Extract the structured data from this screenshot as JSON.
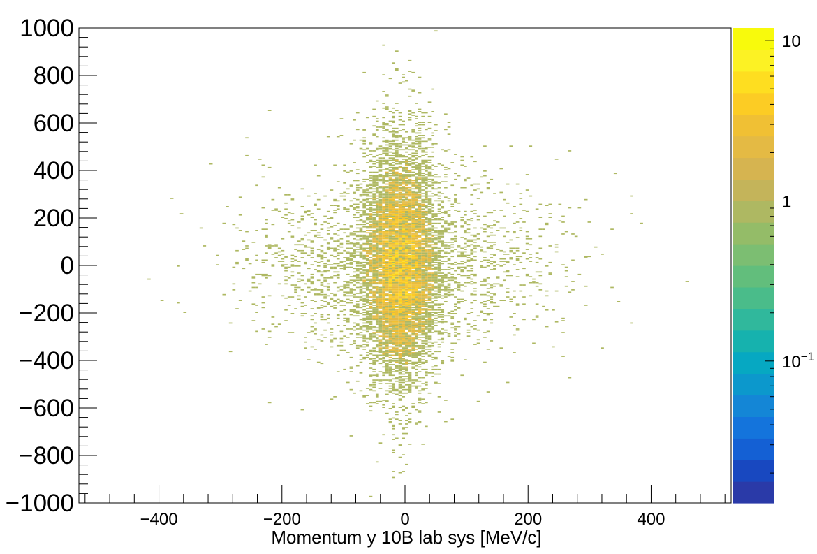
{
  "chart_data": {
    "type": "heatmap",
    "xlabel": "Momentum y 10B  lab sys [MeV/c]",
    "ylabel": "",
    "xlim": [
      -530,
      530
    ],
    "ylim": [
      -1000,
      1000
    ],
    "x_ticks": [
      "-400",
      "-200",
      "0",
      "200",
      "400"
    ],
    "y_ticks": [
      "-1000",
      "-800",
      "-600",
      "-400",
      "-200",
      "0",
      "200",
      "400",
      "600",
      "800",
      "1000"
    ],
    "x_tick_labels": [
      "−400",
      "−200",
      "0",
      "200",
      "400"
    ],
    "y_tick_labels": [
      "−1000",
      "−800",
      "−600",
      "−400",
      "−200",
      "0",
      "200",
      "400",
      "600",
      "800",
      "1000"
    ],
    "colorbar": {
      "scale": "log",
      "range": [
        0.013,
        12
      ],
      "tick_labels": [
        "10",
        "1",
        "10−1"
      ],
      "colors": [
        "#2a3aa8",
        "#1848c0",
        "#1460d4",
        "#1474dc",
        "#1486d6",
        "#0c98cc",
        "#06a8c2",
        "#16b2ae",
        "#30b89c",
        "#4abc8a",
        "#62be7c",
        "#7cbe72",
        "#94bc68",
        "#aeb862",
        "#c4b45a",
        "#d6b450",
        "#e4ba44",
        "#f0c034",
        "#fccc24",
        "#fede20",
        "#fcf224",
        "#f8fa0c"
      ]
    },
    "grid": false,
    "distribution": {
      "description_values": {
        "core_center": [
          -10,
          0
        ],
        "core_sigma_x": 30,
        "core_sigma_y": 250,
        "halo_sigma_x": 120,
        "halo_sigma_y": 180,
        "max_count": 12
      }
    }
  }
}
